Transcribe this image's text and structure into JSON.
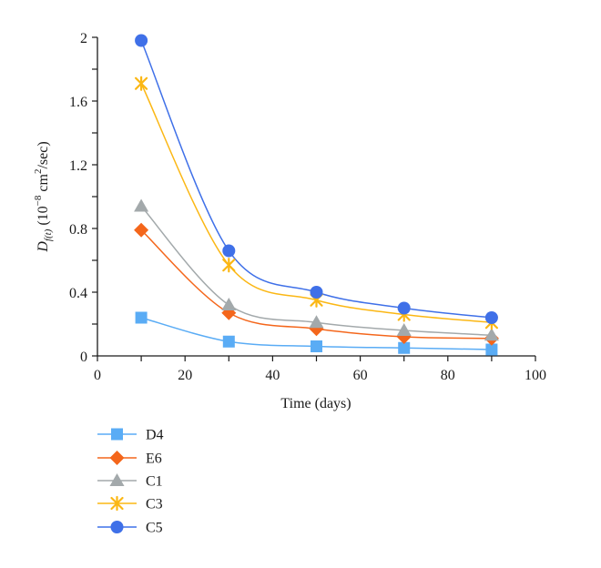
{
  "chart_data": {
    "type": "line",
    "title": "",
    "xlabel": "Time (days)",
    "ylabel": {
      "main": "D",
      "subscript": "f(t)",
      "unit_prefix": " (10",
      "unit_exp": "−8",
      "unit_mid": " cm",
      "unit_exp2": "2",
      "unit_suffix": "/sec)"
    },
    "xlim": [
      0,
      100
    ],
    "ylim": [
      0,
      2
    ],
    "xticks": [
      0,
      20,
      40,
      60,
      80,
      100
    ],
    "xtick_labels": [
      "0",
      "20",
      "40",
      "60",
      "80",
      "100"
    ],
    "xminor_step": 10,
    "yticks": [
      0,
      0.4,
      0.8,
      1.2,
      1.6,
      2
    ],
    "ytick_labels": [
      "0",
      "0.4",
      "0.8",
      "1.2",
      "1.6",
      "2"
    ],
    "yminor_step": 0.2,
    "grid": false,
    "legend_position": "bottom-left",
    "x": [
      10,
      30,
      50,
      70,
      90
    ],
    "series": [
      {
        "name": "D4",
        "marker": "square",
        "color": "#5aacf5",
        "values": [
          0.24,
          0.09,
          0.06,
          0.05,
          0.04
        ]
      },
      {
        "name": "E6",
        "marker": "diamond",
        "color": "#f4661b",
        "values": [
          0.79,
          0.27,
          0.17,
          0.12,
          0.11
        ]
      },
      {
        "name": "C1",
        "marker": "triangle",
        "color": "#a3a9ab",
        "values": [
          0.94,
          0.32,
          0.21,
          0.16,
          0.13
        ]
      },
      {
        "name": "C3",
        "marker": "star",
        "color": "#fbb714",
        "values": [
          1.71,
          0.57,
          0.35,
          0.26,
          0.21
        ]
      },
      {
        "name": "C5",
        "marker": "circle",
        "color": "#3f70e8",
        "values": [
          1.98,
          0.66,
          0.4,
          0.3,
          0.24
        ]
      }
    ]
  }
}
